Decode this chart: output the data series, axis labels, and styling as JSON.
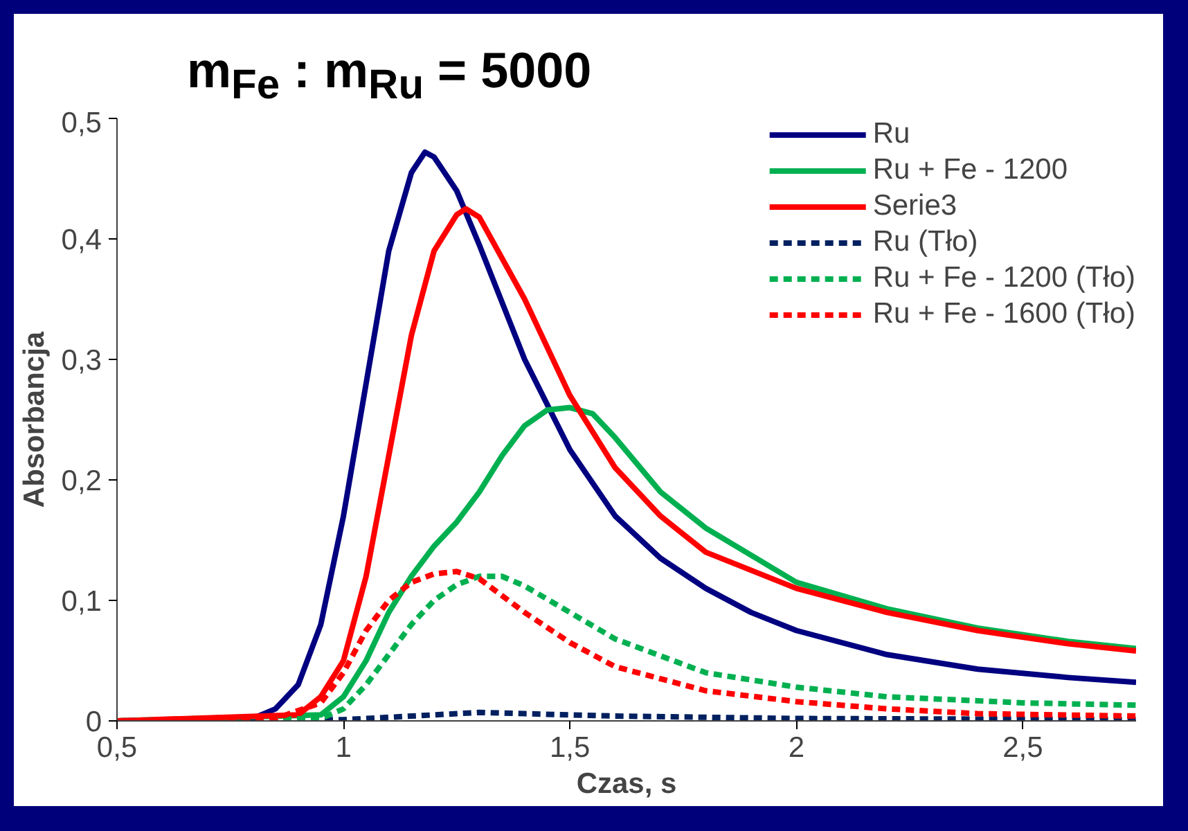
{
  "chart_data": {
    "type": "line",
    "title": "m$_{Fe}$ : m$_{Ru}$ = 5000",
    "xlabel": "Czas, s",
    "ylabel": "Absorbancja",
    "xlim": [
      0.5,
      2.75
    ],
    "ylim": [
      0,
      0.5
    ],
    "xticks": [
      {
        "value": 0.5,
        "label": "0,5"
      },
      1,
      {
        "value": 1.5,
        "label": "1,5"
      },
      2,
      {
        "value": 2.5,
        "label": "2,5"
      }
    ],
    "yticks": [
      0,
      {
        "value": 0.1,
        "label": "0,1"
      },
      {
        "value": 0.2,
        "label": "0,2"
      },
      {
        "value": 0.3,
        "label": "0,3"
      },
      {
        "value": 0.4,
        "label": "0,4"
      },
      {
        "value": 0.5,
        "label": "0,5"
      }
    ],
    "grid": false,
    "legend": "top right",
    "series": [
      {
        "name": "Ru",
        "color": "#000080",
        "line_style": "solid",
        "x": [
          0.5,
          0.8,
          0.85,
          0.9,
          0.95,
          1.0,
          1.05,
          1.1,
          1.15,
          1.18,
          1.2,
          1.25,
          1.3,
          1.4,
          1.5,
          1.6,
          1.7,
          1.8,
          1.9,
          2.0,
          2.2,
          2.4,
          2.6,
          2.75
        ],
        "values": [
          0,
          0.002,
          0.01,
          0.03,
          0.08,
          0.17,
          0.28,
          0.39,
          0.455,
          0.472,
          0.468,
          0.44,
          0.395,
          0.3,
          0.225,
          0.17,
          0.135,
          0.11,
          0.09,
          0.075,
          0.055,
          0.043,
          0.036,
          0.032
        ]
      },
      {
        "name": "Ru + Fe - 1200",
        "color": "#00b050",
        "line_style": "solid",
        "x": [
          0.5,
          0.95,
          1.0,
          1.05,
          1.1,
          1.15,
          1.2,
          1.25,
          1.3,
          1.35,
          1.4,
          1.45,
          1.5,
          1.55,
          1.6,
          1.7,
          1.8,
          2.0,
          2.2,
          2.4,
          2.6,
          2.75
        ],
        "values": [
          0,
          0.005,
          0.02,
          0.05,
          0.09,
          0.12,
          0.145,
          0.165,
          0.19,
          0.22,
          0.245,
          0.258,
          0.26,
          0.255,
          0.235,
          0.19,
          0.16,
          0.115,
          0.093,
          0.077,
          0.066,
          0.06
        ]
      },
      {
        "name": "Serie3",
        "color": "#ff0000",
        "line_style": "solid",
        "x": [
          0.5,
          0.9,
          0.95,
          1.0,
          1.05,
          1.1,
          1.15,
          1.2,
          1.25,
          1.27,
          1.3,
          1.4,
          1.5,
          1.6,
          1.7,
          1.8,
          2.0,
          2.2,
          2.4,
          2.6,
          2.75
        ],
        "values": [
          0,
          0.005,
          0.02,
          0.05,
          0.12,
          0.22,
          0.32,
          0.39,
          0.42,
          0.425,
          0.418,
          0.35,
          0.27,
          0.21,
          0.17,
          0.14,
          0.11,
          0.09,
          0.075,
          0.064,
          0.058
        ]
      },
      {
        "name": "Ru (Tło)",
        "color": "#002060",
        "line_style": "dashed",
        "x": [
          0.5,
          1.0,
          1.2,
          1.3,
          1.4,
          1.6,
          2.0,
          2.75
        ],
        "values": [
          0,
          0.001,
          0.005,
          0.007,
          0.006,
          0.004,
          0.002,
          0.001
        ]
      },
      {
        "name": "Ru + Fe - 1200 (Tło)",
        "color": "#00b050",
        "line_style": "dashed",
        "x": [
          0.5,
          0.95,
          1.0,
          1.05,
          1.1,
          1.15,
          1.2,
          1.25,
          1.3,
          1.35,
          1.4,
          1.5,
          1.6,
          1.8,
          2.0,
          2.2,
          2.5,
          2.75
        ],
        "values": [
          0,
          0.002,
          0.01,
          0.03,
          0.055,
          0.08,
          0.1,
          0.113,
          0.12,
          0.12,
          0.112,
          0.09,
          0.068,
          0.04,
          0.028,
          0.02,
          0.015,
          0.013
        ]
      },
      {
        "name": "Ru + Fe - 1600 (Tło)",
        "color": "#ff0000",
        "line_style": "dashed",
        "x": [
          0.5,
          0.85,
          0.95,
          1.0,
          1.05,
          1.1,
          1.15,
          1.2,
          1.25,
          1.3,
          1.4,
          1.5,
          1.6,
          1.8,
          2.0,
          2.2,
          2.4,
          2.75
        ],
        "values": [
          0,
          0.002,
          0.015,
          0.04,
          0.075,
          0.1,
          0.115,
          0.122,
          0.124,
          0.118,
          0.09,
          0.065,
          0.045,
          0.025,
          0.016,
          0.01,
          0.006,
          0.004
        ]
      }
    ]
  }
}
